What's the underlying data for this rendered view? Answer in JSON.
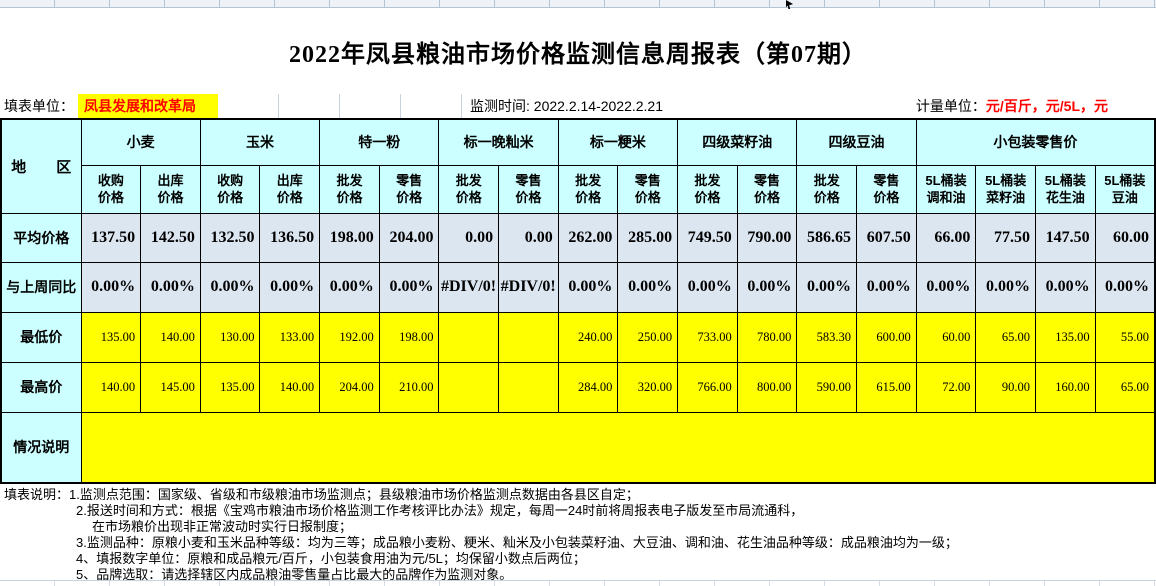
{
  "title": "2022年凤县粮油市场价格监测信息周报表（第07期）",
  "info_bar": {
    "unit_label": "填表单位：",
    "unit_value": "凤县发展和改革局",
    "time_label": "监测时间:",
    "time_value": "2022.2.14-2022.2.21",
    "measure_label": "计量单位：",
    "measure_value": "元/百斤，元/5L，元"
  },
  "table": {
    "region_header": "地　　区",
    "groups": [
      {
        "label": "小麦",
        "span": 2
      },
      {
        "label": "玉米",
        "span": 2
      },
      {
        "label": "特一粉",
        "span": 2
      },
      {
        "label": "标一晚籼米",
        "span": 2
      },
      {
        "label": "标一粳米",
        "span": 2
      },
      {
        "label": "四级菜籽油",
        "span": 2
      },
      {
        "label": "四级豆油",
        "span": 2
      },
      {
        "label": "小包装零售价",
        "span": 4
      }
    ],
    "sub_headers": [
      "收购\n价格",
      "出库\n价格",
      "收购\n价格",
      "出库\n价格",
      "批发\n价格",
      "零售\n价格",
      "批发\n价格",
      "零售\n价格",
      "批发\n价格",
      "零售\n价格",
      "批发\n价格",
      "零售\n价格",
      "批发\n价格",
      "零售\n价格",
      "5L桶装\n调和油",
      "5L桶装\n菜籽油",
      "5L桶装\n花生油",
      "5L桶装\n豆油"
    ],
    "rows": [
      {
        "label": "平均价格",
        "kind": "avg",
        "values": [
          "137.50",
          "142.50",
          "132.50",
          "136.50",
          "198.00",
          "204.00",
          "0.00",
          "0.00",
          "262.00",
          "285.00",
          "749.50",
          "790.00",
          "586.65",
          "607.50",
          "66.00",
          "77.50",
          "147.50",
          "60.00"
        ]
      },
      {
        "label": "与上周同比",
        "kind": "wow",
        "values": [
          "0.00%",
          "0.00%",
          "0.00%",
          "0.00%",
          "0.00%",
          "0.00%",
          "#DIV/0!",
          "#DIV/0!",
          "0.00%",
          "0.00%",
          "0.00%",
          "0.00%",
          "0.00%",
          "0.00%",
          "0.00%",
          "0.00%",
          "0.00%",
          "0.00%"
        ]
      },
      {
        "label": "最低价",
        "kind": "min",
        "values": [
          "135.00",
          "140.00",
          "130.00",
          "133.00",
          "192.00",
          "198.00",
          "",
          "",
          "240.00",
          "250.00",
          "733.00",
          "780.00",
          "583.30",
          "600.00",
          "60.00",
          "65.00",
          "135.00",
          "55.00"
        ]
      },
      {
        "label": "最高价",
        "kind": "max",
        "values": [
          "140.00",
          "145.00",
          "135.00",
          "140.00",
          "204.00",
          "210.00",
          "",
          "",
          "284.00",
          "320.00",
          "766.00",
          "800.00",
          "590.00",
          "615.00",
          "72.00",
          "90.00",
          "160.00",
          "65.00"
        ]
      }
    ],
    "remark_row": {
      "label": "情况说明",
      "value": ""
    }
  },
  "notes": {
    "label": "填表说明：",
    "lines": [
      "1.监测点范围：国家级、省级和市级粮油市场监测点；县级粮油市场价格监测点数据由各县区自定；",
      "2.报送时间和方式：根据《宝鸡市粮油市场价格监测工作考核评比办法》规定，每周一24时前将周报表电子版发至市局流通科，",
      "在市场粮价出现非正常波动时实行日报制度；",
      "3.监测品种：原粮小麦和玉米品种等级：均为三等；成品粮小麦粉、粳米、籼米及小包装菜籽油、大豆油、调和油、花生油品种等级：成品粮油均为一级；",
      "4、填报数字单位：原粮和成品粮元/百斤，小包装食用油为元/5L；均保留小数点后两位；",
      "5、品牌选取：请选择辖区内成品粮油零售量占比最大的品牌作为监测对象。"
    ]
  },
  "colors": {
    "header_bg": "#CCFFFF",
    "data_row_bg": "#DCE6F1",
    "highlight_bg": "#FFFF00",
    "alert_text": "#FF0000"
  }
}
